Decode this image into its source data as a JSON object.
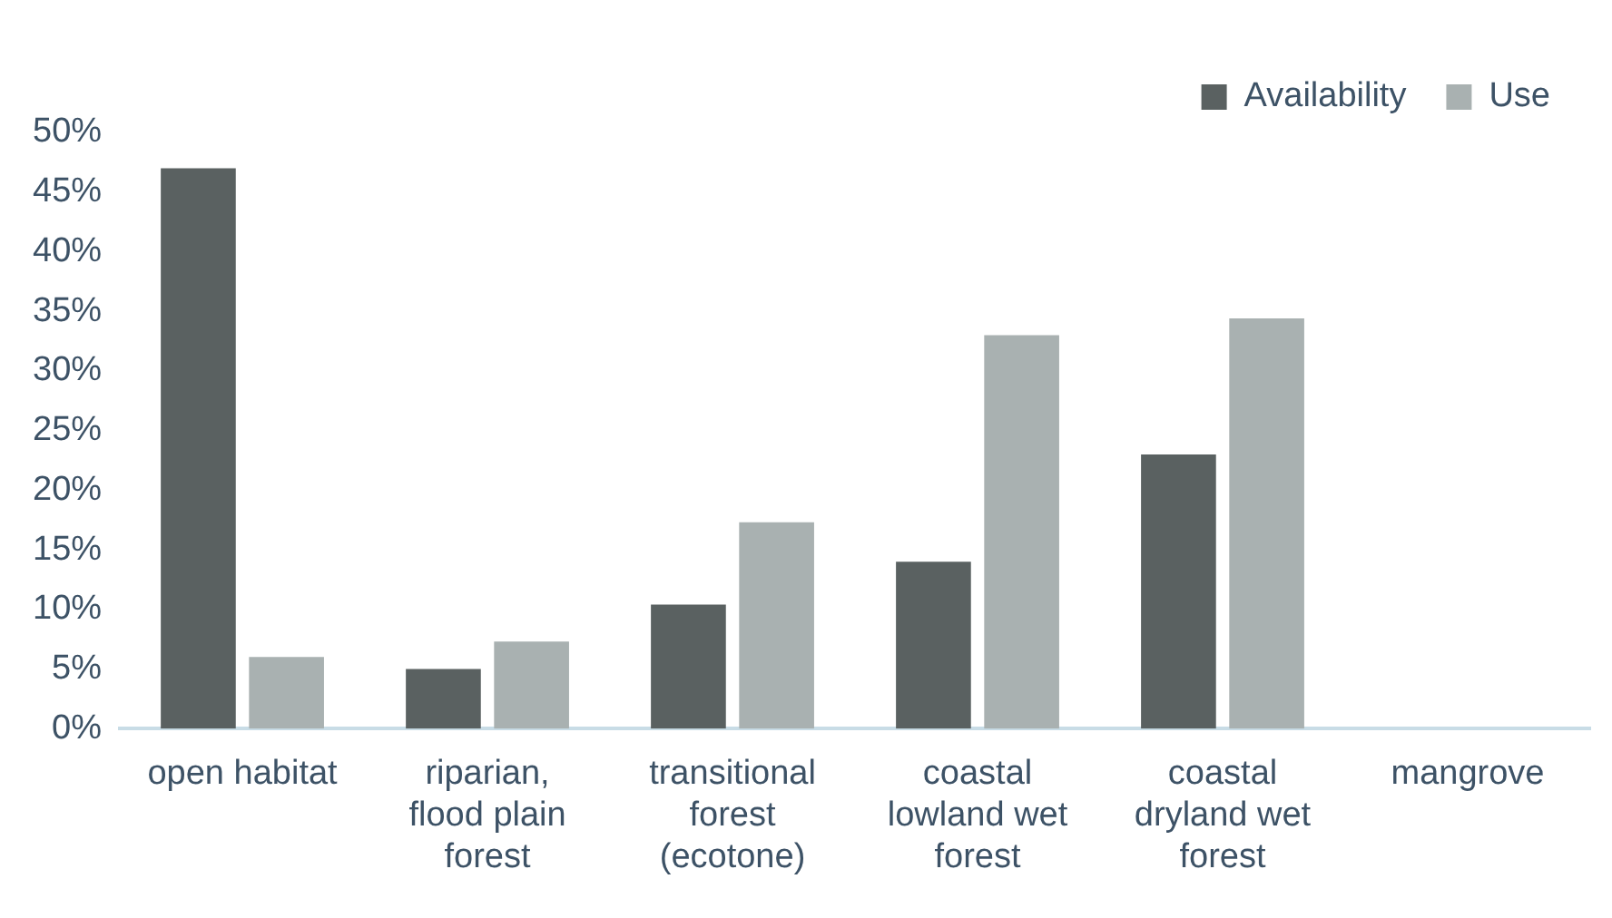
{
  "chart_data": {
    "type": "bar",
    "categories": [
      "open habitat",
      "riparian, flood plain forest",
      "transitional forest (ecotone)",
      "coastal lowland wet forest",
      "coastal dryland wet forest",
      "mangrove"
    ],
    "series": [
      {
        "name": "Availability",
        "color": "#5a6161",
        "values": [
          47,
          5,
          10.4,
          14,
          23,
          0
        ]
      },
      {
        "name": "Use",
        "color": "#a9b1b1",
        "values": [
          6,
          7.3,
          17.3,
          33,
          34.4,
          0
        ]
      }
    ],
    "ylim": [
      0,
      50
    ],
    "yticks": [
      {
        "value": 0,
        "label": "0%"
      },
      {
        "value": 5,
        "label": "5%"
      },
      {
        "value": 10,
        "label": "10%"
      },
      {
        "value": 15,
        "label": "15%"
      },
      {
        "value": 20,
        "label": "20%"
      },
      {
        "value": 25,
        "label": "25%"
      },
      {
        "value": 30,
        "label": "30%"
      },
      {
        "value": 35,
        "label": "35%"
      },
      {
        "value": 40,
        "label": "40%"
      },
      {
        "value": 45,
        "label": "45%"
      },
      {
        "value": 50,
        "label": "50%"
      }
    ],
    "grid": false,
    "legend": "top right"
  }
}
